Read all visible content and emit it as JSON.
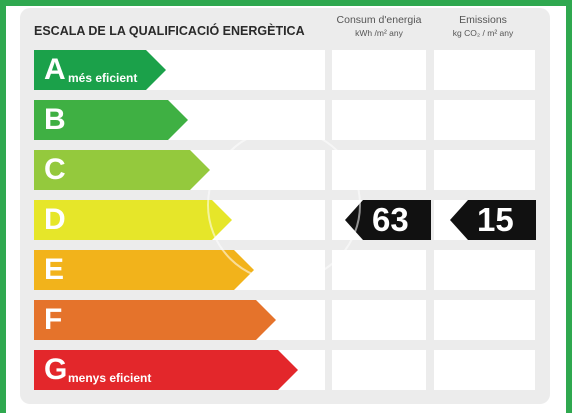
{
  "title": "ESCALA DE LA QUALIFICACIÓ ENERGÈTICA",
  "columns": {
    "consum": {
      "label": "Consum d'energia",
      "unit": "kWh /m² any"
    },
    "emissions": {
      "label": "Emissions",
      "unit": "kg CO₂ / m² any"
    }
  },
  "ratings": [
    {
      "letter": "A",
      "caption": "més eficient",
      "color": "#1ba14a"
    },
    {
      "letter": "B",
      "caption": "",
      "color": "#3fb043"
    },
    {
      "letter": "C",
      "caption": "",
      "color": "#94c93d"
    },
    {
      "letter": "D",
      "caption": "",
      "color": "#e6e629"
    },
    {
      "letter": "E",
      "caption": "",
      "color": "#f2b31b"
    },
    {
      "letter": "F",
      "caption": "",
      "color": "#e5732b"
    },
    {
      "letter": "G",
      "caption": "menys eficient",
      "color": "#e3272b"
    }
  ],
  "result": {
    "class": "D",
    "consum_value": "63",
    "emissions_value": "15"
  },
  "frame_color": "#2fa84f"
}
